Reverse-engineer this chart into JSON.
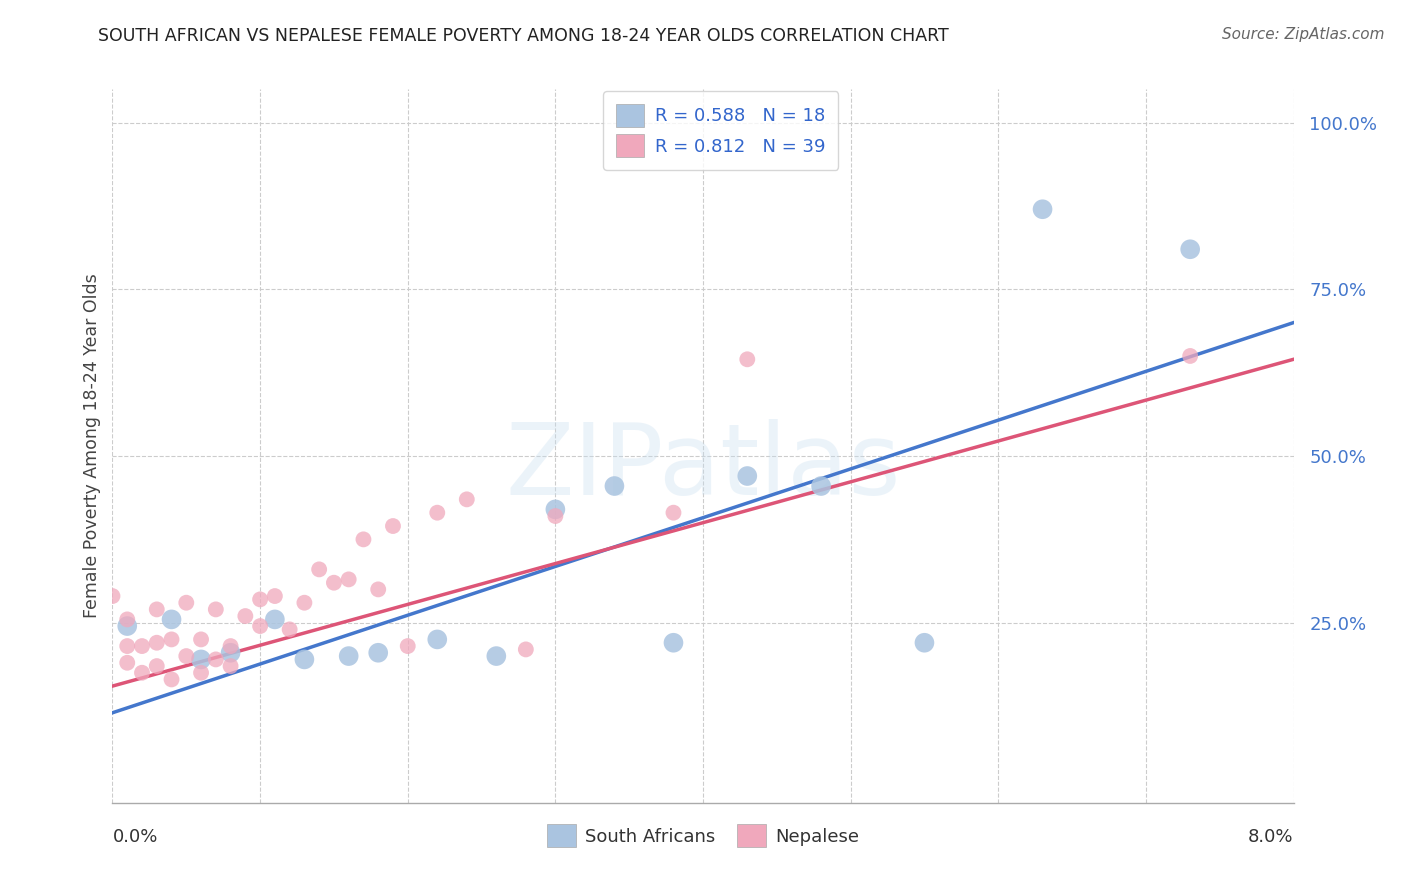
{
  "title": "SOUTH AFRICAN VS NEPALESE FEMALE POVERTY AMONG 18-24 YEAR OLDS CORRELATION CHART",
  "source": "Source: ZipAtlas.com",
  "ylabel": "Female Poverty Among 18-24 Year Olds",
  "right_yticklabels": [
    "25.0%",
    "50.0%",
    "75.0%",
    "100.0%"
  ],
  "right_ytick_vals": [
    0.25,
    0.5,
    0.75,
    1.0
  ],
  "legend_blue_R": "0.588",
  "legend_blue_N": "18",
  "legend_pink_R": "0.812",
  "legend_pink_N": "39",
  "legend_label_blue": "South Africans",
  "legend_label_pink": "Nepalese",
  "watermark": "ZIPatlas",
  "blue_scatter_color": "#aac4e0",
  "pink_scatter_color": "#f0a8bc",
  "blue_line_color": "#4477cc",
  "pink_line_color": "#dd5577",
  "legend_text_color": "#3366cc",
  "title_color": "#222222",
  "background_color": "#ffffff",
  "grid_color": "#cccccc",
  "xlim": [
    0,
    0.08
  ],
  "ylim": [
    -0.02,
    1.05
  ],
  "sa_x": [
    0.001,
    0.004,
    0.006,
    0.008,
    0.011,
    0.013,
    0.016,
    0.018,
    0.022,
    0.026,
    0.03,
    0.034,
    0.038,
    0.043,
    0.048,
    0.055,
    0.063,
    0.073
  ],
  "sa_y": [
    0.245,
    0.255,
    0.195,
    0.205,
    0.255,
    0.195,
    0.2,
    0.205,
    0.225,
    0.2,
    0.42,
    0.455,
    0.22,
    0.47,
    0.455,
    0.22,
    0.87,
    0.81
  ],
  "np_x": [
    0.0,
    0.001,
    0.001,
    0.001,
    0.002,
    0.002,
    0.003,
    0.003,
    0.003,
    0.004,
    0.004,
    0.005,
    0.005,
    0.006,
    0.006,
    0.007,
    0.007,
    0.008,
    0.008,
    0.009,
    0.01,
    0.01,
    0.011,
    0.012,
    0.013,
    0.014,
    0.015,
    0.016,
    0.017,
    0.018,
    0.019,
    0.02,
    0.022,
    0.024,
    0.028,
    0.03,
    0.038,
    0.043,
    0.073
  ],
  "np_y": [
    0.29,
    0.19,
    0.215,
    0.255,
    0.175,
    0.215,
    0.185,
    0.22,
    0.27,
    0.165,
    0.225,
    0.2,
    0.28,
    0.175,
    0.225,
    0.195,
    0.27,
    0.185,
    0.215,
    0.26,
    0.285,
    0.245,
    0.29,
    0.24,
    0.28,
    0.33,
    0.31,
    0.315,
    0.375,
    0.3,
    0.395,
    0.215,
    0.415,
    0.435,
    0.21,
    0.41,
    0.415,
    0.645,
    0.65
  ],
  "blue_line_x0": 0.0,
  "blue_line_y0": 0.115,
  "blue_line_x1": 0.08,
  "blue_line_y1": 0.7,
  "pink_line_x0": 0.0,
  "pink_line_y0": 0.155,
  "pink_line_x1": 0.08,
  "pink_line_y1": 0.645
}
